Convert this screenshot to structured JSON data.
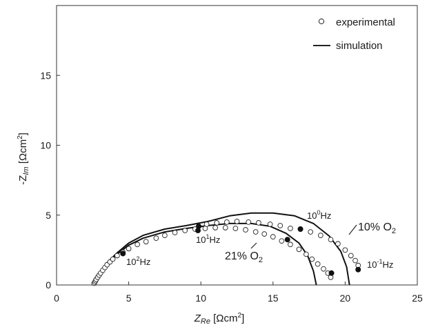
{
  "chart_data": {
    "type": "scatter",
    "xlim": [
      0,
      25
    ],
    "ylim": [
      0,
      20
    ],
    "x_ticks": [
      "0",
      "5",
      "10",
      "15",
      "20",
      "25"
    ],
    "y_ticks": [
      "0",
      "5",
      "10",
      "15"
    ],
    "xlabel": {
      "prefix": "Z",
      "sub": "Re",
      "unit": " [Ωcm",
      "sup": "2",
      "close": "]"
    },
    "ylabel": {
      "prefix": "-Z",
      "sub": "Im",
      "unit": " [Ωcm",
      "sup": "2",
      "close": "]"
    },
    "legend": {
      "position": "top-right",
      "experimental": "experimental",
      "simulation": "simulation"
    },
    "series": [
      {
        "name": "21% O2",
        "label": {
          "base": "21% O",
          "sub": "2"
        },
        "experimental": [
          [
            2.6,
            0.12
          ],
          [
            2.65,
            0.2
          ],
          [
            2.7,
            0.3
          ],
          [
            2.75,
            0.4
          ],
          [
            2.85,
            0.55
          ],
          [
            2.95,
            0.7
          ],
          [
            3.05,
            0.85
          ],
          [
            3.2,
            1.05
          ],
          [
            3.35,
            1.25
          ],
          [
            3.5,
            1.45
          ],
          [
            3.7,
            1.65
          ],
          [
            3.9,
            1.85
          ],
          [
            4.2,
            2.1
          ],
          [
            4.6,
            2.35
          ],
          [
            5.0,
            2.6
          ],
          [
            5.6,
            2.9
          ],
          [
            6.2,
            3.1
          ],
          [
            6.9,
            3.35
          ],
          [
            7.5,
            3.55
          ],
          [
            8.2,
            3.75
          ],
          [
            8.9,
            3.9
          ],
          [
            9.6,
            4.0
          ],
          [
            10.3,
            4.05
          ],
          [
            11.0,
            4.1
          ],
          [
            11.7,
            4.1
          ],
          [
            12.4,
            4.05
          ],
          [
            13.1,
            3.95
          ],
          [
            13.8,
            3.8
          ],
          [
            14.4,
            3.65
          ],
          [
            15.0,
            3.45
          ],
          [
            15.6,
            3.15
          ],
          [
            16.2,
            2.9
          ],
          [
            16.8,
            2.55
          ],
          [
            17.3,
            2.2
          ],
          [
            17.7,
            1.85
          ],
          [
            18.1,
            1.5
          ],
          [
            18.5,
            1.15
          ],
          [
            18.8,
            0.85
          ],
          [
            19.0,
            0.55
          ]
        ],
        "simulation": [
          [
            2.6,
            0.0
          ],
          [
            2.7,
            0.3
          ],
          [
            2.9,
            0.65
          ],
          [
            3.2,
            1.1
          ],
          [
            3.6,
            1.6
          ],
          [
            4.2,
            2.2
          ],
          [
            5.0,
            2.85
          ],
          [
            6.0,
            3.35
          ],
          [
            7.5,
            3.8
          ],
          [
            9.0,
            4.05
          ],
          [
            10.5,
            4.25
          ],
          [
            12.0,
            4.4
          ],
          [
            13.5,
            4.4
          ],
          [
            14.8,
            4.2
          ],
          [
            15.9,
            3.7
          ],
          [
            16.8,
            3.0
          ],
          [
            17.4,
            2.1
          ],
          [
            17.8,
            1.0
          ],
          [
            18.0,
            0.0
          ]
        ],
        "markers": [
          {
            "x": 4.6,
            "y": 2.25,
            "label": "10",
            "sup": "2",
            "unit": "Hz"
          },
          {
            "x": 9.8,
            "y": 3.9,
            "label": "10",
            "sup": "1",
            "unit": "Hz"
          },
          {
            "x": 16.0,
            "y": 3.25,
            "label": "",
            "sup": "",
            "unit": ""
          },
          {
            "x": 19.05,
            "y": 0.85,
            "label": "",
            "sup": "",
            "unit": ""
          }
        ]
      },
      {
        "name": "10% O2",
        "label": {
          "base": "10% O",
          "sub": "2"
        },
        "experimental": [
          [
            10.4,
            4.35
          ],
          [
            11.1,
            4.45
          ],
          [
            11.8,
            4.5
          ],
          [
            12.5,
            4.55
          ],
          [
            13.3,
            4.5
          ],
          [
            14.0,
            4.45
          ],
          [
            14.8,
            4.35
          ],
          [
            15.5,
            4.25
          ],
          [
            16.2,
            4.05
          ],
          [
            16.9,
            4.0
          ],
          [
            17.6,
            3.8
          ],
          [
            18.3,
            3.55
          ],
          [
            19.0,
            3.25
          ],
          [
            19.5,
            2.95
          ],
          [
            20.0,
            2.5
          ],
          [
            20.4,
            2.1
          ],
          [
            20.7,
            1.75
          ],
          [
            20.9,
            1.4
          ]
        ],
        "simulation": [
          [
            2.6,
            0.0
          ],
          [
            2.7,
            0.3
          ],
          [
            2.9,
            0.7
          ],
          [
            3.2,
            1.15
          ],
          [
            3.6,
            1.7
          ],
          [
            4.2,
            2.3
          ],
          [
            5.0,
            3.0
          ],
          [
            6.0,
            3.55
          ],
          [
            7.5,
            4.0
          ],
          [
            9.0,
            4.25
          ],
          [
            10.5,
            4.55
          ],
          [
            12.0,
            4.95
          ],
          [
            13.5,
            5.15
          ],
          [
            15.0,
            5.15
          ],
          [
            16.5,
            4.95
          ],
          [
            17.8,
            4.4
          ],
          [
            18.9,
            3.5
          ],
          [
            19.7,
            2.4
          ],
          [
            20.1,
            1.3
          ],
          [
            20.3,
            0.0
          ]
        ],
        "markers": [
          {
            "x": 9.85,
            "y": 4.2,
            "label": "",
            "sup": "",
            "unit": ""
          },
          {
            "x": 16.9,
            "y": 4.0,
            "label": "10",
            "sup": "0",
            "unit": "Hz"
          },
          {
            "x": 20.9,
            "y": 1.1,
            "label": "10",
            "sup": "-1",
            "unit": "Hz"
          }
        ]
      }
    ]
  }
}
